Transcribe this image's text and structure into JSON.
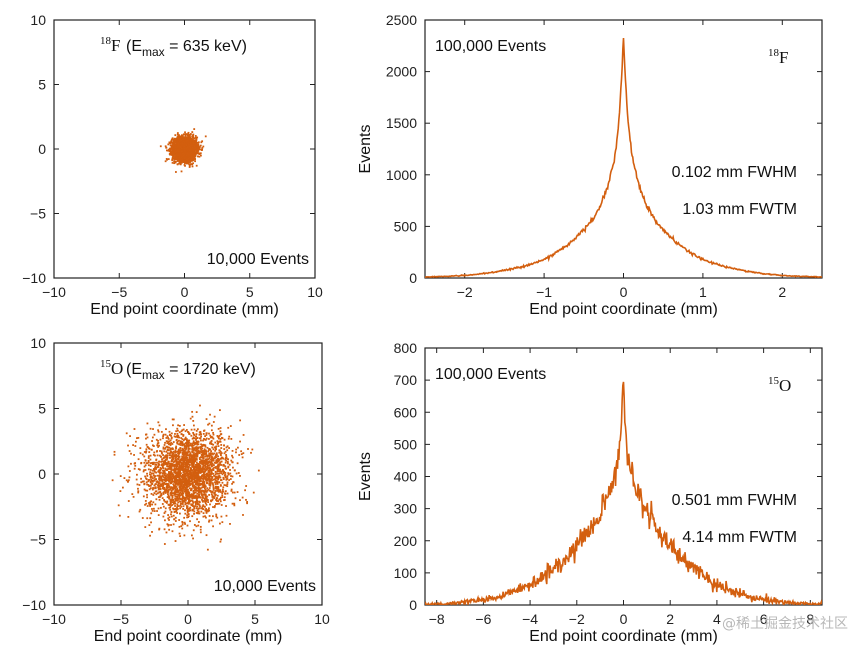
{
  "chart_data": [
    {
      "type": "scatter",
      "xlabel": "End point coordinate (mm)",
      "ylabel": "",
      "xlim": [
        -10,
        10
      ],
      "ylim": [
        -10,
        10
      ],
      "xticks": [
        -10,
        -5,
        0,
        5,
        10
      ],
      "yticks": [
        -10,
        -5,
        0,
        5,
        10
      ],
      "annotation": "10,000 Events",
      "isotope": {
        "mass": "18",
        "symbol": "F"
      },
      "emax_label": {
        "prefix": "(E",
        "sub": "max",
        "suffix": " = 635 keV)"
      },
      "points": {
        "count": 10000,
        "distribution": "gaussian",
        "center": [
          0,
          0
        ],
        "sigma_mm": 0.45,
        "max_radius_mm": 1.9
      },
      "color": "#d35f0f"
    },
    {
      "type": "line",
      "xlabel": "End point coordinate (mm)",
      "ylabel": "Events",
      "xlim": [
        -2.5,
        2.5
      ],
      "ylim": [
        0,
        2500
      ],
      "xticks": [
        -2,
        -1,
        0,
        1,
        2
      ],
      "yticks": [
        0,
        500,
        1000,
        1500,
        2000,
        2500
      ],
      "annotation": "100,000 Events",
      "isotope": {
        "mass": "18",
        "symbol": "F"
      },
      "fwhm": "0.102 mm FWHM",
      "fwtm": "1.03 mm FWTM",
      "series": [
        {
          "x": [
            -2.5,
            -2.0,
            -1.5,
            -1.0,
            -0.8,
            -0.6,
            -0.4,
            -0.3,
            -0.2,
            -0.1,
            -0.05,
            0.0,
            0.05,
            0.1,
            0.2,
            0.3,
            0.4,
            0.6,
            0.8,
            1.0,
            1.5,
            2.0,
            2.5
          ],
          "y": [
            10,
            25,
            75,
            180,
            270,
            390,
            560,
            690,
            880,
            1220,
            1600,
            2320,
            1600,
            1220,
            880,
            690,
            560,
            390,
            270,
            180,
            75,
            25,
            10
          ]
        }
      ],
      "color": "#d35f0f"
    },
    {
      "type": "scatter",
      "xlabel": "End point coordinate (mm)",
      "ylabel": "",
      "xlim": [
        -10,
        10
      ],
      "ylim": [
        -10,
        10
      ],
      "xticks": [
        -10,
        -5,
        0,
        5,
        10
      ],
      "yticks": [
        -10,
        -5,
        0,
        5,
        10
      ],
      "annotation": "10,000 Events",
      "isotope": {
        "mass": "15",
        "symbol": "O"
      },
      "emax_label": {
        "prefix": "(E",
        "sub": "max",
        "suffix": " = 1720 keV)"
      },
      "points": {
        "count": 10000,
        "distribution": "gaussian",
        "center": [
          0,
          0
        ],
        "sigma_mm": 1.6,
        "max_radius_mm": 6.0
      },
      "color": "#d35f0f"
    },
    {
      "type": "line",
      "xlabel": "End point coordinate (mm)",
      "ylabel": "Events",
      "xlim": [
        -8.5,
        8.5
      ],
      "ylim": [
        0,
        800
      ],
      "xticks": [
        -8,
        -6,
        -4,
        -2,
        0,
        2,
        4,
        6,
        8
      ],
      "yticks": [
        0,
        100,
        200,
        300,
        400,
        500,
        600,
        700,
        800
      ],
      "annotation": "100,000 Events",
      "isotope": {
        "mass": "15",
        "symbol": "O"
      },
      "fwhm": "0.501 mm FWHM",
      "fwtm": "4.14 mm FWTM",
      "series": [
        {
          "x": [
            -8,
            -7,
            -6,
            -5,
            -4,
            -3,
            -2,
            -1.5,
            -1,
            -0.5,
            -0.25,
            -0.1,
            0,
            0.1,
            0.25,
            0.5,
            1,
            1.5,
            2,
            3,
            4,
            5,
            6,
            7,
            8
          ],
          "y": [
            3,
            8,
            18,
            35,
            65,
            115,
            185,
            230,
            290,
            370,
            440,
            520,
            720,
            520,
            440,
            370,
            290,
            230,
            185,
            115,
            65,
            35,
            18,
            8,
            3
          ]
        }
      ],
      "color": "#d35f0f"
    }
  ],
  "watermark": "@稀土掘金技术社区"
}
